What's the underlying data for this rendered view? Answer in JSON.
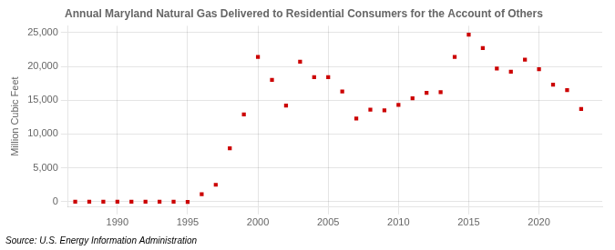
{
  "chart_data": {
    "type": "scatter",
    "title": "Annual Maryland Natural Gas Delivered to Residential Consumers for the Account of Others",
    "ylabel": "Million Cubic Feet",
    "annotations": [
      "Source: U.S. Energy Information Administration"
    ],
    "x": [
      1987,
      1988,
      1989,
      1990,
      1991,
      1992,
      1993,
      1994,
      1995,
      1996,
      1997,
      1998,
      1999,
      2000,
      2001,
      2002,
      2003,
      2004,
      2005,
      2006,
      2007,
      2008,
      2009,
      2010,
      2011,
      2012,
      2013,
      2014,
      2015,
      2016,
      2017,
      2018,
      2019,
      2020,
      2021,
      2022,
      2023
    ],
    "values": [
      10,
      10,
      10,
      10,
      10,
      10,
      10,
      10,
      -50,
      1100,
      2500,
      7900,
      12900,
      21400,
      18000,
      14200,
      20700,
      18400,
      18400,
      16300,
      12300,
      13600,
      13500,
      14300,
      15300,
      16100,
      16200,
      21400,
      24700,
      22700,
      19700,
      19200,
      21000,
      19600,
      17300,
      16500,
      13700
    ],
    "color": "#cc0000",
    "marker": "square",
    "xlim": [
      1986.5,
      2024.5
    ],
    "xticks": [
      1990,
      1995,
      2000,
      2005,
      2010,
      2015,
      2020
    ],
    "ylim": [
      -800,
      26000
    ],
    "yticks": [
      0,
      {
        "value": 5000,
        "label": "5,000"
      },
      {
        "value": 10000,
        "label": "10,000"
      },
      {
        "value": 15000,
        "label": "15,000"
      },
      {
        "value": 20000,
        "label": "20,000"
      },
      {
        "value": 25000,
        "label": "25,000"
      }
    ],
    "grid": true
  }
}
